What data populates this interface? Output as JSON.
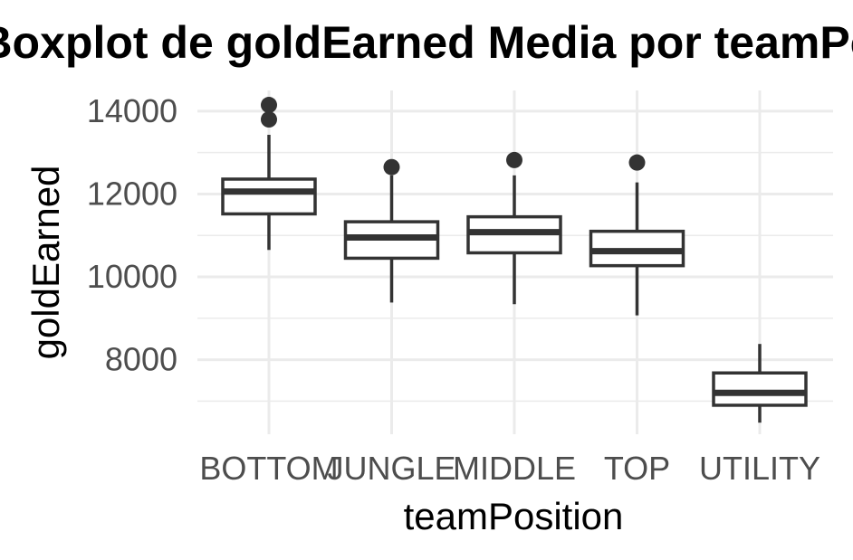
{
  "chart_data": {
    "type": "boxplot",
    "title": "Boxplot de goldEarned Media por teamPosition",
    "xlabel": "teamPosition",
    "ylabel": "goldEarned",
    "categories": [
      "BOTTOM",
      "JUNGLE",
      "MIDDLE",
      "TOP",
      "UTILITY"
    ],
    "ylim": [
      6200,
      14500
    ],
    "y_ticks": [
      8000,
      10000,
      12000,
      14000
    ],
    "grid": true,
    "boxes": [
      {
        "category": "BOTTOM",
        "whisker_low": 10650,
        "q1": 11520,
        "median": 12060,
        "q3": 12360,
        "whisker_high": 13430,
        "outliers": [
          13800,
          14150
        ]
      },
      {
        "category": "JUNGLE",
        "whisker_low": 9380,
        "q1": 10450,
        "median": 10950,
        "q3": 11330,
        "whisker_high": 12450,
        "outliers": [
          12650
        ]
      },
      {
        "category": "MIDDLE",
        "whisker_low": 9340,
        "q1": 10580,
        "median": 11080,
        "q3": 11450,
        "whisker_high": 12450,
        "outliers": [
          12820
        ]
      },
      {
        "category": "TOP",
        "whisker_low": 9070,
        "q1": 10270,
        "median": 10620,
        "q3": 11100,
        "whisker_high": 12280,
        "outliers": [
          12760
        ]
      },
      {
        "category": "UTILITY",
        "whisker_low": 6480,
        "q1": 6900,
        "median": 7200,
        "q3": 7680,
        "whisker_high": 8380,
        "outliers": []
      }
    ]
  }
}
